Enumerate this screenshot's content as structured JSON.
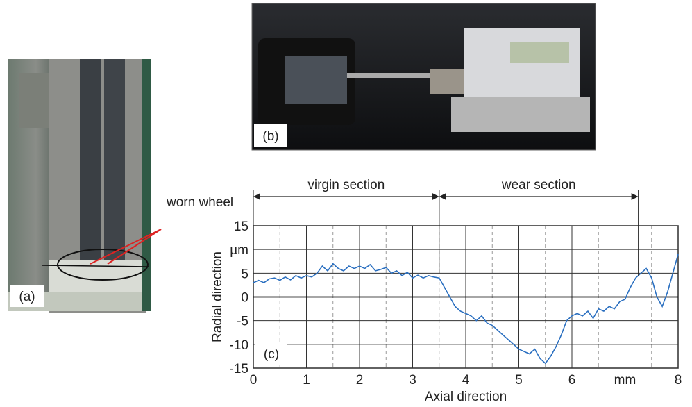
{
  "panels": {
    "a": {
      "label": "(a)",
      "annotation": "worn wheel"
    },
    "b": {
      "label": "(b)"
    }
  },
  "chart_data": {
    "type": "line",
    "panel_label": "(c)",
    "x_label": "Axial direction",
    "y_label": "Radial direction",
    "annotations": [
      {
        "text": "virgin section",
        "x_range": [
          0,
          3.5
        ]
      },
      {
        "text": "wear section",
        "x_range": [
          3.5,
          7.25
        ]
      }
    ],
    "xlim": [
      0,
      8
    ],
    "ylim": [
      -15,
      15
    ],
    "xticks": [
      0,
      1,
      2,
      3,
      4,
      5,
      6,
      {
        "value": 7,
        "label": "mm"
      },
      8
    ],
    "yticks": [
      -15,
      -10,
      -5,
      0,
      5,
      {
        "value": 10,
        "label": "µm"
      },
      15
    ],
    "x_minor_grid": [
      0.5,
      1.5,
      2.5,
      3.5,
      4.5,
      5.5,
      6.5,
      7.5
    ],
    "grid": true,
    "x": [
      0,
      0.1,
      0.2,
      0.3,
      0.4,
      0.5,
      0.6,
      0.7,
      0.8,
      0.9,
      1,
      1.1,
      1.2,
      1.3,
      1.4,
      1.5,
      1.6,
      1.7,
      1.8,
      1.9,
      2,
      2.1,
      2.2,
      2.3,
      2.4,
      2.5,
      2.6,
      2.7,
      2.8,
      2.9,
      3,
      3.1,
      3.2,
      3.3,
      3.4,
      3.5,
      3.6,
      3.7,
      3.8,
      3.9,
      4,
      4.1,
      4.2,
      4.3,
      4.4,
      4.5,
      4.6,
      4.7,
      4.8,
      4.9,
      5,
      5.1,
      5.2,
      5.3,
      5.4,
      5.5,
      5.6,
      5.7,
      5.8,
      5.9,
      6,
      6.1,
      6.2,
      6.3,
      6.4,
      6.5,
      6.6,
      6.7,
      6.8,
      6.9,
      7,
      7.1,
      7.2,
      7.3,
      7.4,
      7.5,
      7.6,
      7.7,
      7.8,
      7.9,
      8
    ],
    "series": [
      {
        "color": "#2a6fc0",
        "values": [
          3,
          3.5,
          3,
          3.8,
          4,
          3.5,
          4.2,
          3.6,
          4.5,
          4,
          4.5,
          4.2,
          5,
          6.5,
          5.5,
          7,
          6,
          5.5,
          6.5,
          6,
          6.5,
          6,
          6.8,
          5.5,
          5.8,
          6.2,
          5,
          5.5,
          4.5,
          5.2,
          4,
          4.6,
          4,
          4.5,
          4.2,
          4,
          2,
          0,
          -2,
          -3,
          -3.5,
          -4,
          -5,
          -4,
          -5.5,
          -6,
          -7,
          -8,
          -9,
          -10,
          -11,
          -11.5,
          -12,
          -11,
          -13,
          -14,
          -12.5,
          -10.5,
          -8,
          -5,
          -4,
          -3.5,
          -4,
          -3,
          -4.5,
          -2.5,
          -3,
          -2,
          -2.5,
          -1,
          -0.5,
          2,
          4,
          5,
          6,
          4,
          0,
          -2,
          1,
          5,
          9
        ]
      }
    ]
  }
}
